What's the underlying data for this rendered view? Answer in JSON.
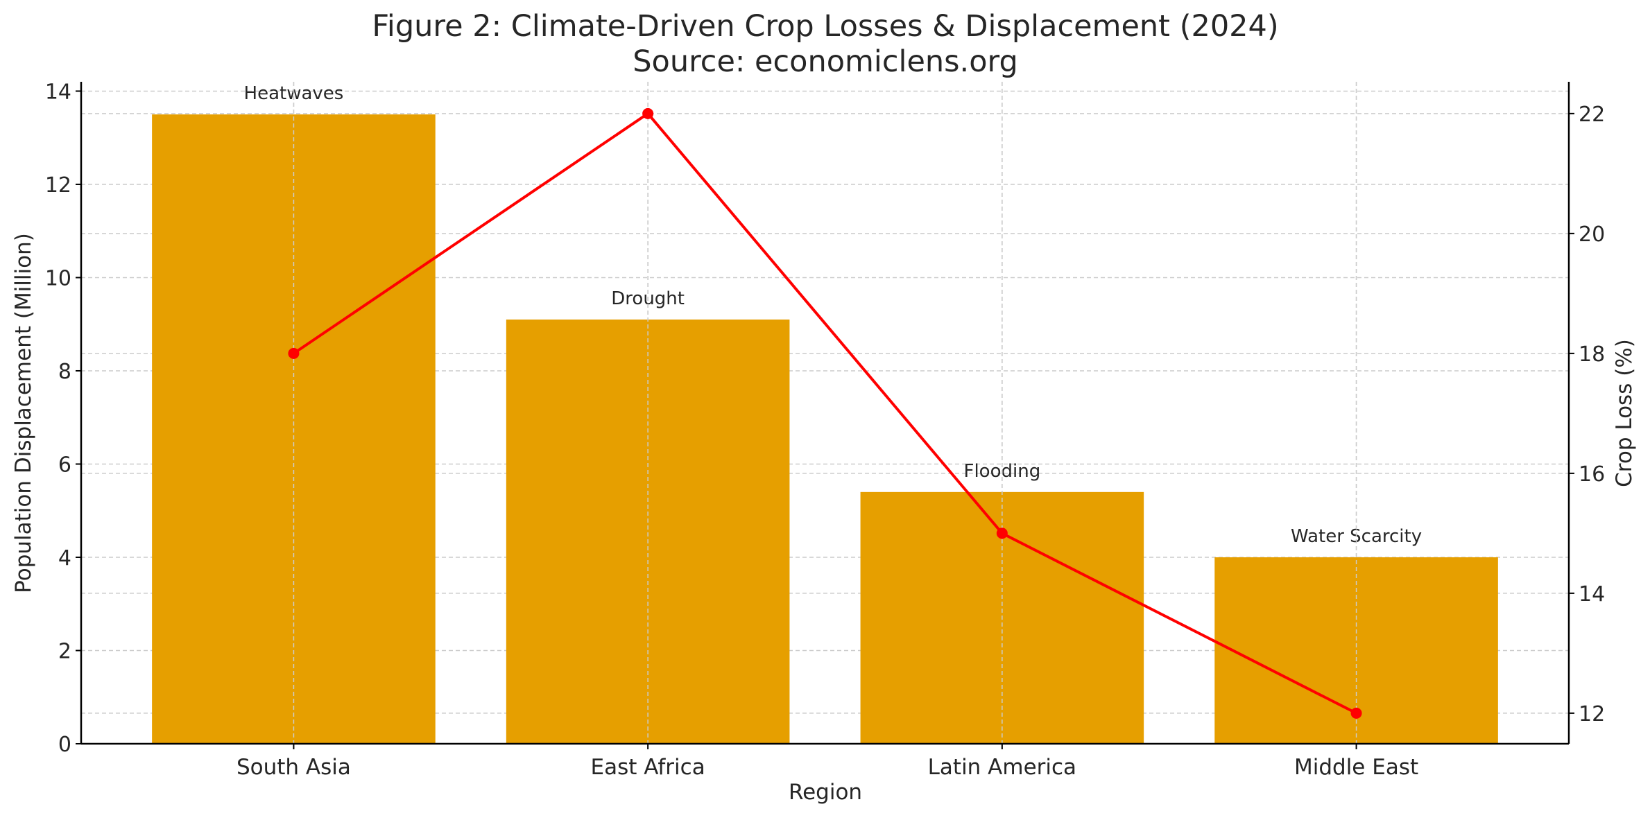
{
  "chart_data": {
    "type": "bar+line",
    "title": "Figure 2: Climate-Driven Crop Losses & Displacement (2024)",
    "subtitle": "Source: economiclens.org",
    "xlabel": "Region",
    "ylabel": "Population Displacement (Million)",
    "y2label": "Crop Loss (%)",
    "categories": [
      "South Asia",
      "East Africa",
      "Latin America",
      "Middle East"
    ],
    "bar_values": [
      13.5,
      9.1,
      5.4,
      4.0
    ],
    "bar_annotations": [
      "Heatwaves",
      "Drought",
      "Flooding",
      "Water Scarcity"
    ],
    "line_values": [
      18,
      22,
      15,
      12
    ],
    "ylim": [
      0,
      14.2
    ],
    "y2lim": [
      11.49,
      22.53
    ],
    "yticks": [
      0,
      2,
      4,
      6,
      8,
      10,
      12,
      14
    ],
    "y2ticks": [
      12,
      14,
      16,
      18,
      20,
      22
    ],
    "grid": true,
    "colors": {
      "bar": "#E69F00",
      "line": "#FF0000",
      "grid": "#cccccc"
    }
  }
}
